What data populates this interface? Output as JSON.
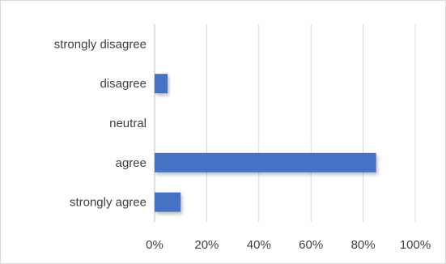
{
  "chart_data": {
    "type": "bar",
    "orientation": "horizontal",
    "categories": [
      "strongly disagree",
      "disagree",
      "neutral",
      "agree",
      "strongly agree"
    ],
    "values": [
      0,
      5,
      0,
      85,
      10
    ],
    "x_ticks": [
      "0%",
      "20%",
      "40%",
      "60%",
      "80%",
      "100%"
    ],
    "xlim": [
      0,
      100
    ],
    "grid": true,
    "legend": "none",
    "bar_color": "#4472c4"
  }
}
